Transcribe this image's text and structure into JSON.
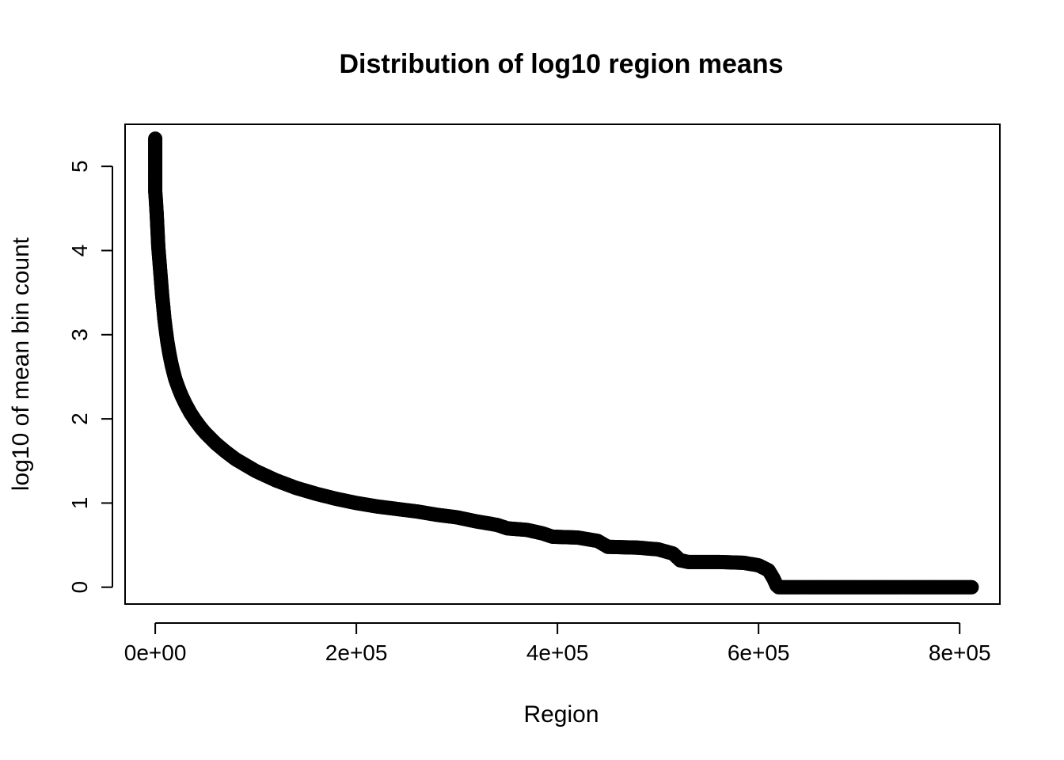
{
  "chart_data": {
    "type": "scatter",
    "title": "Distribution of log10 region means",
    "xlabel": "Region",
    "ylabel": "log10 of mean bin count",
    "xlim": [
      -30000,
      840000
    ],
    "ylim": [
      -0.2,
      5.5
    ],
    "x_ticks": [
      {
        "value": 0,
        "label": "0e+00"
      },
      {
        "value": 200000,
        "label": "2e+05"
      },
      {
        "value": 400000,
        "label": "4e+05"
      },
      {
        "value": 600000,
        "label": "6e+05"
      },
      {
        "value": 800000,
        "label": "8e+05"
      }
    ],
    "y_ticks": [
      {
        "value": 0,
        "label": "0"
      },
      {
        "value": 1,
        "label": "1"
      },
      {
        "value": 2,
        "label": "2"
      },
      {
        "value": 3,
        "label": "3"
      },
      {
        "value": 4,
        "label": "4"
      },
      {
        "value": 5,
        "label": "5"
      }
    ],
    "grid": false,
    "marker": "open-circle",
    "series_color": "#000000",
    "points": [
      {
        "x": 0,
        "y": 5.33
      },
      {
        "x": 0,
        "y": 5.15
      },
      {
        "x": 0,
        "y": 5.05
      },
      {
        "x": 0,
        "y": 5.0
      },
      {
        "x": 0,
        "y": 4.95
      },
      {
        "x": 0,
        "y": 4.85
      },
      {
        "x": 0,
        "y": 4.78
      },
      {
        "x": 0,
        "y": 4.7
      },
      {
        "x": 500,
        "y": 4.62
      },
      {
        "x": 1000,
        "y": 4.52
      },
      {
        "x": 1500,
        "y": 4.42
      },
      {
        "x": 2000,
        "y": 4.3
      },
      {
        "x": 2500,
        "y": 4.18
      },
      {
        "x": 3000,
        "y": 4.05
      },
      {
        "x": 4000,
        "y": 3.9
      },
      {
        "x": 5000,
        "y": 3.75
      },
      {
        "x": 6000,
        "y": 3.6
      },
      {
        "x": 7000,
        "y": 3.45
      },
      {
        "x": 8000,
        "y": 3.33
      },
      {
        "x": 9000,
        "y": 3.2
      },
      {
        "x": 10000,
        "y": 3.1
      },
      {
        "x": 12000,
        "y": 2.92
      },
      {
        "x": 14000,
        "y": 2.78
      },
      {
        "x": 16000,
        "y": 2.66
      },
      {
        "x": 18000,
        "y": 2.56
      },
      {
        "x": 20000,
        "y": 2.47
      },
      {
        "x": 23000,
        "y": 2.37
      },
      {
        "x": 26000,
        "y": 2.28
      },
      {
        "x": 30000,
        "y": 2.18
      },
      {
        "x": 35000,
        "y": 2.07
      },
      {
        "x": 40000,
        "y": 1.98
      },
      {
        "x": 45000,
        "y": 1.9
      },
      {
        "x": 50000,
        "y": 1.83
      },
      {
        "x": 60000,
        "y": 1.71
      },
      {
        "x": 70000,
        "y": 1.61
      },
      {
        "x": 80000,
        "y": 1.52
      },
      {
        "x": 90000,
        "y": 1.45
      },
      {
        "x": 100000,
        "y": 1.38
      },
      {
        "x": 120000,
        "y": 1.27
      },
      {
        "x": 140000,
        "y": 1.18
      },
      {
        "x": 160000,
        "y": 1.11
      },
      {
        "x": 180000,
        "y": 1.05
      },
      {
        "x": 200000,
        "y": 1.0
      },
      {
        "x": 220000,
        "y": 0.96
      },
      {
        "x": 240000,
        "y": 0.93
      },
      {
        "x": 260000,
        "y": 0.9
      },
      {
        "x": 280000,
        "y": 0.86
      },
      {
        "x": 300000,
        "y": 0.83
      },
      {
        "x": 320000,
        "y": 0.78
      },
      {
        "x": 340000,
        "y": 0.74
      },
      {
        "x": 350000,
        "y": 0.7
      },
      {
        "x": 370000,
        "y": 0.68
      },
      {
        "x": 385000,
        "y": 0.64
      },
      {
        "x": 395000,
        "y": 0.6
      },
      {
        "x": 420000,
        "y": 0.59
      },
      {
        "x": 440000,
        "y": 0.55
      },
      {
        "x": 450000,
        "y": 0.48
      },
      {
        "x": 480000,
        "y": 0.47
      },
      {
        "x": 500000,
        "y": 0.45
      },
      {
        "x": 515000,
        "y": 0.4
      },
      {
        "x": 522000,
        "y": 0.32
      },
      {
        "x": 530000,
        "y": 0.3
      },
      {
        "x": 560000,
        "y": 0.3
      },
      {
        "x": 585000,
        "y": 0.29
      },
      {
        "x": 600000,
        "y": 0.26
      },
      {
        "x": 610000,
        "y": 0.2
      },
      {
        "x": 615000,
        "y": 0.1
      },
      {
        "x": 618000,
        "y": 0.02
      },
      {
        "x": 620000,
        "y": 0.0
      },
      {
        "x": 640000,
        "y": 0.0
      },
      {
        "x": 660000,
        "y": 0.0
      },
      {
        "x": 680000,
        "y": 0.0
      },
      {
        "x": 700000,
        "y": 0.0
      },
      {
        "x": 720000,
        "y": 0.0
      },
      {
        "x": 740000,
        "y": 0.0
      },
      {
        "x": 760000,
        "y": 0.0
      },
      {
        "x": 780000,
        "y": 0.0
      },
      {
        "x": 800000,
        "y": 0.0
      },
      {
        "x": 812000,
        "y": 0.0
      }
    ]
  }
}
